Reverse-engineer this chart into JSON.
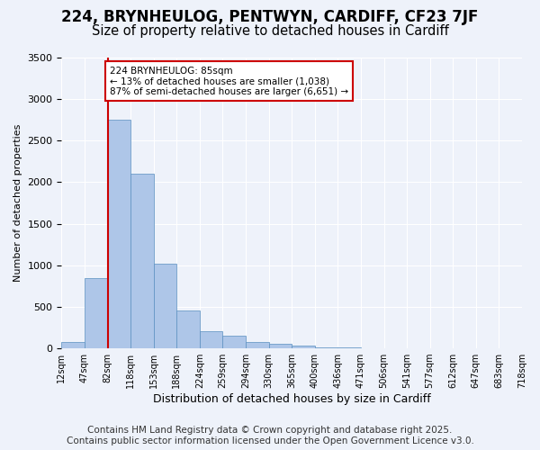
{
  "title_line1": "224, BRYNHEULOG, PENTWYN, CARDIFF, CF23 7JF",
  "title_line2": "Size of property relative to detached houses in Cardiff",
  "xlabel": "Distribution of detached houses by size in Cardiff",
  "ylabel": "Number of detached properties",
  "bar_color": "#aec6e8",
  "bar_edge_color": "#5a8fc0",
  "tick_labels": [
    "12sqm",
    "47sqm",
    "82sqm",
    "118sqm",
    "153sqm",
    "188sqm",
    "224sqm",
    "259sqm",
    "294sqm",
    "330sqm",
    "365sqm",
    "400sqm",
    "436sqm",
    "471sqm",
    "506sqm",
    "541sqm",
    "577sqm",
    "612sqm",
    "647sqm",
    "683sqm",
    "718sqm"
  ],
  "values": [
    75,
    850,
    2750,
    2100,
    1020,
    460,
    210,
    150,
    75,
    50,
    30,
    15,
    8,
    5,
    3,
    2,
    1,
    1,
    0,
    0
  ],
  "vline_index": 1.5,
  "annotation_text": "224 BRYNHEULOG: 85sqm\n← 13% of detached houses are smaller (1,038)\n87% of semi-detached houses are larger (6,651) →",
  "annotation_box_color": "#ffffff",
  "annotation_box_edge": "#cc0000",
  "vline_color": "#cc0000",
  "ylim": [
    0,
    3500
  ],
  "yticks": [
    0,
    500,
    1000,
    1500,
    2000,
    2500,
    3000,
    3500
  ],
  "background_color": "#eef2fa",
  "plot_bg_color": "#eef2fa",
  "footer_line1": "Contains HM Land Registry data © Crown copyright and database right 2025.",
  "footer_line2": "Contains public sector information licensed under the Open Government Licence v3.0.",
  "title_fontsize": 12,
  "subtitle_fontsize": 10.5,
  "footer_fontsize": 7.5
}
